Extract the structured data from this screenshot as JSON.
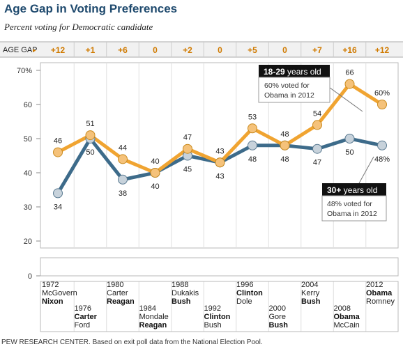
{
  "title": "Age Gap in Voting Preferences",
  "subtitle": "Percent voting for Democratic candidate",
  "age_gap": {
    "label": "AGE GAP",
    "arrow": "▸",
    "values": [
      "+12",
      "+1",
      "+6",
      "0",
      "+2",
      "0",
      "+5",
      "0",
      "+7",
      "+16",
      "+12"
    ]
  },
  "callouts": {
    "young": {
      "age": "18-29",
      "suffix": " years old",
      "line1": "60% voted for",
      "line2": "Obama in 2012"
    },
    "old": {
      "age": "30+",
      "suffix": " years old",
      "line1": "48% voted for",
      "line2": "Obama in 2012"
    }
  },
  "elections": [
    {
      "year": "1972",
      "line1": "McGovern",
      "line2": "Nixon",
      "bold": 2
    },
    {
      "year": "1976",
      "line1": "Carter",
      "line2": "Ford",
      "bold": 1
    },
    {
      "year": "1980",
      "line1": "Carter",
      "line2": "Reagan",
      "bold": 2
    },
    {
      "year": "1984",
      "line1": "Mondale",
      "line2": "Reagan",
      "bold": 2
    },
    {
      "year": "1988",
      "line1": "Dukakis",
      "line2": "Bush",
      "bold": 2
    },
    {
      "year": "1992",
      "line1": "Clinton",
      "line2": "Bush",
      "bold": 1
    },
    {
      "year": "1996",
      "line1": "Clinton",
      "line2": "Dole",
      "bold": 1
    },
    {
      "year": "2000",
      "line1": "Gore",
      "line2": "Bush",
      "bold": 2
    },
    {
      "year": "2004",
      "line1": "Kerry",
      "line2": "Bush",
      "bold": 2
    },
    {
      "year": "2008",
      "line1": "Obama",
      "line2": "McCain",
      "bold": 1
    },
    {
      "year": "2012",
      "line1": "Obama",
      "line2": "Romney",
      "bold": 1
    }
  ],
  "source": "PEW RESEARCH CENTER. Based on exit poll data from the National Election Pool.",
  "colors": {
    "young": "#f0a431",
    "old": "#3d6b8a",
    "gap": "#d07a00",
    "title": "#1f4a6e",
    "callout_bg": "#111111"
  },
  "chart_data": {
    "type": "line",
    "title": "Age Gap in Voting Preferences",
    "subtitle": "Percent voting for Democratic candidate",
    "x": [
      "1972",
      "1976",
      "1980",
      "1984",
      "1988",
      "1992",
      "1996",
      "2000",
      "2004",
      "2008",
      "2012"
    ],
    "y_ticks": [
      "70%",
      "60",
      "50",
      "40",
      "30",
      "20",
      "0"
    ],
    "ylim": [
      0,
      70
    ],
    "grid": false,
    "series": [
      {
        "name": "18-29 years old",
        "values": [
          46,
          51,
          44,
          40,
          47,
          43,
          53,
          48,
          54,
          66,
          60
        ],
        "labels": [
          "46",
          "51",
          "44",
          "40",
          "47",
          "43",
          "53",
          "48",
          "54",
          "66",
          "60%"
        ]
      },
      {
        "name": "30+ years old",
        "values": [
          34,
          50,
          38,
          40,
          45,
          43,
          48,
          48,
          47,
          50,
          48
        ],
        "labels": [
          "34",
          "50",
          "38",
          "40",
          "45",
          "43",
          "48",
          "48",
          "47",
          "50",
          "48%"
        ]
      }
    ]
  }
}
